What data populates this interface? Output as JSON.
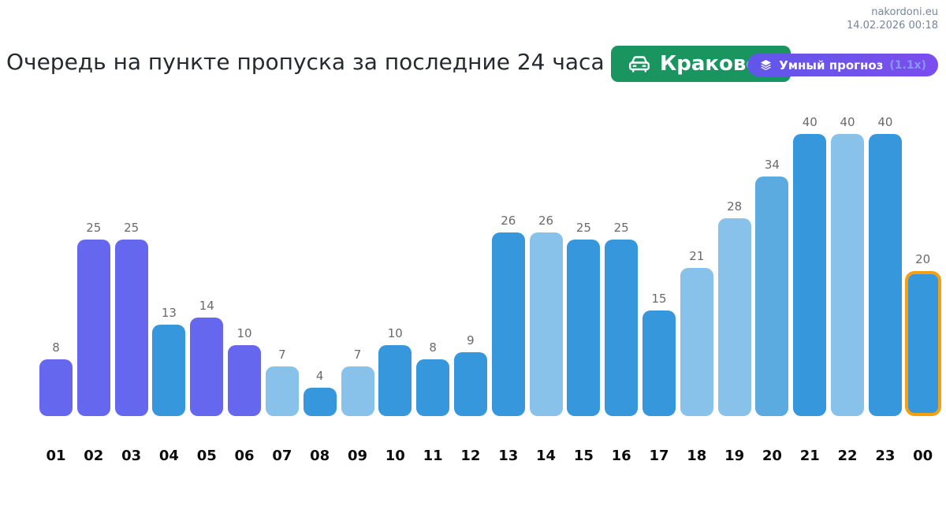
{
  "site": {
    "name": "nakordoni.eu",
    "datetime": "14.02.2026 00:18"
  },
  "header": {
    "title": "Очередь на пункте пропуска за последние 24 часа",
    "checkpoint_badge": {
      "label": "Краковец",
      "bg_color": "#1A9560"
    },
    "forecast_badge": {
      "label": "Умный прогноз",
      "multiplier": "(1.1x)",
      "gradient_start": "#6157EA",
      "gradient_end": "#7C4DEE"
    }
  },
  "chart_data": {
    "type": "bar",
    "title": "Очередь на пункте пропуска за последние 24 часа",
    "categories": [
      "01",
      "02",
      "03",
      "04",
      "05",
      "06",
      "07",
      "08",
      "09",
      "10",
      "11",
      "12",
      "13",
      "14",
      "15",
      "16",
      "17",
      "18",
      "19",
      "20",
      "21",
      "22",
      "23",
      "00"
    ],
    "values": [
      8,
      25,
      25,
      13,
      14,
      10,
      7,
      4,
      7,
      10,
      8,
      9,
      26,
      26,
      25,
      25,
      15,
      21,
      28,
      34,
      40,
      40,
      40,
      20
    ],
    "bar_shades": [
      "purple",
      "purple",
      "purple",
      "blue",
      "purple",
      "purple",
      "light",
      "blue",
      "light",
      "blue",
      "blue",
      "blue",
      "blue",
      "light",
      "blue",
      "blue",
      "blue",
      "light",
      "light",
      "mid",
      "blue",
      "light",
      "blue",
      "blue"
    ],
    "palette": {
      "purple": "#6567EE",
      "blue": "#3797DC",
      "light": "#88C2EA",
      "mid": "#5BAAE0"
    },
    "highlight": {
      "index": 23,
      "border_color": "#F5A011"
    },
    "ylim": [
      0,
      40
    ],
    "value_labels": true,
    "grid": false,
    "legend": false,
    "xlabel": "",
    "ylabel": ""
  }
}
